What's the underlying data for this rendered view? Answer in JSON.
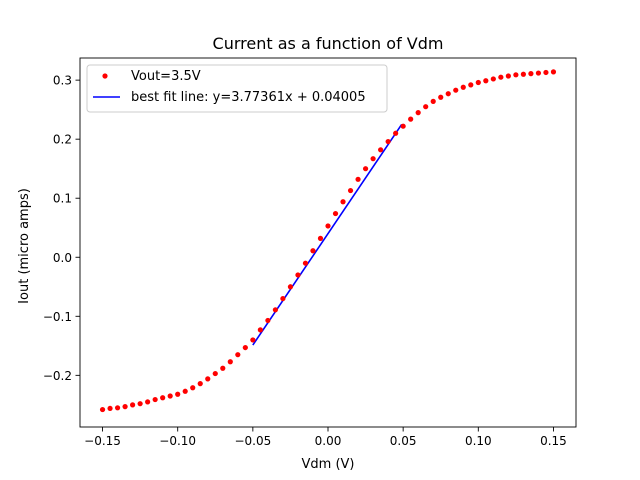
{
  "chart_data": {
    "type": "scatter",
    "title": "Current as a function of Vdm",
    "xlabel": "Vdm (V)",
    "ylabel": "Iout (micro amps)",
    "xlim": [
      -0.165,
      0.165
    ],
    "ylim": [
      -0.2875,
      0.3375
    ],
    "xticks": [
      -0.15,
      -0.1,
      -0.05,
      0.0,
      0.05,
      0.1,
      0.15
    ],
    "xtick_labels": [
      "−0.15",
      "−0.10",
      "−0.05",
      "0.00",
      "0.05",
      "0.10",
      "0.15"
    ],
    "yticks": [
      -0.2,
      -0.1,
      0.0,
      0.1,
      0.2,
      0.3
    ],
    "ytick_labels": [
      "−0.2",
      "−0.1",
      "0.0",
      "0.1",
      "0.2",
      "0.3"
    ],
    "grid": false,
    "legend_position": "top-left",
    "series": [
      {
        "name": "Vout=3.5V",
        "kind": "scatter",
        "color": "#ff0000",
        "x": [
          -0.15,
          -0.145,
          -0.14,
          -0.135,
          -0.13,
          -0.125,
          -0.12,
          -0.115,
          -0.11,
          -0.105,
          -0.1,
          -0.095,
          -0.09,
          -0.085,
          -0.08,
          -0.075,
          -0.07,
          -0.065,
          -0.06,
          -0.055,
          -0.05,
          -0.045,
          -0.04,
          -0.035,
          -0.03,
          -0.025,
          -0.02,
          -0.015,
          -0.01,
          -0.005,
          0.0,
          0.005,
          0.01,
          0.015,
          0.02,
          0.025,
          0.03,
          0.035,
          0.04,
          0.045,
          0.05,
          0.055,
          0.06,
          0.065,
          0.07,
          0.075,
          0.08,
          0.085,
          0.09,
          0.095,
          0.1,
          0.105,
          0.11,
          0.115,
          0.12,
          0.125,
          0.13,
          0.135,
          0.14,
          0.145,
          0.15
        ],
        "y": [
          -0.258,
          -0.256,
          -0.255,
          -0.253,
          -0.25,
          -0.248,
          -0.245,
          -0.241,
          -0.238,
          -0.235,
          -0.232,
          -0.227,
          -0.221,
          -0.214,
          -0.206,
          -0.197,
          -0.188,
          -0.177,
          -0.165,
          -0.153,
          -0.14,
          -0.123,
          -0.107,
          -0.089,
          -0.07,
          -0.05,
          -0.03,
          -0.01,
          0.011,
          0.032,
          0.053,
          0.074,
          0.094,
          0.113,
          0.132,
          0.15,
          0.167,
          0.182,
          0.196,
          0.21,
          0.222,
          0.234,
          0.245,
          0.255,
          0.264,
          0.271,
          0.277,
          0.283,
          0.288,
          0.292,
          0.296,
          0.299,
          0.302,
          0.305,
          0.307,
          0.309,
          0.31,
          0.311,
          0.312,
          0.313,
          0.314
        ]
      },
      {
        "name": "best fit line: y=3.77361x + 0.04005",
        "kind": "line",
        "color": "#0000ff",
        "slope": 3.77361,
        "intercept": 0.04005,
        "x": [
          -0.05,
          0.049
        ]
      }
    ]
  }
}
